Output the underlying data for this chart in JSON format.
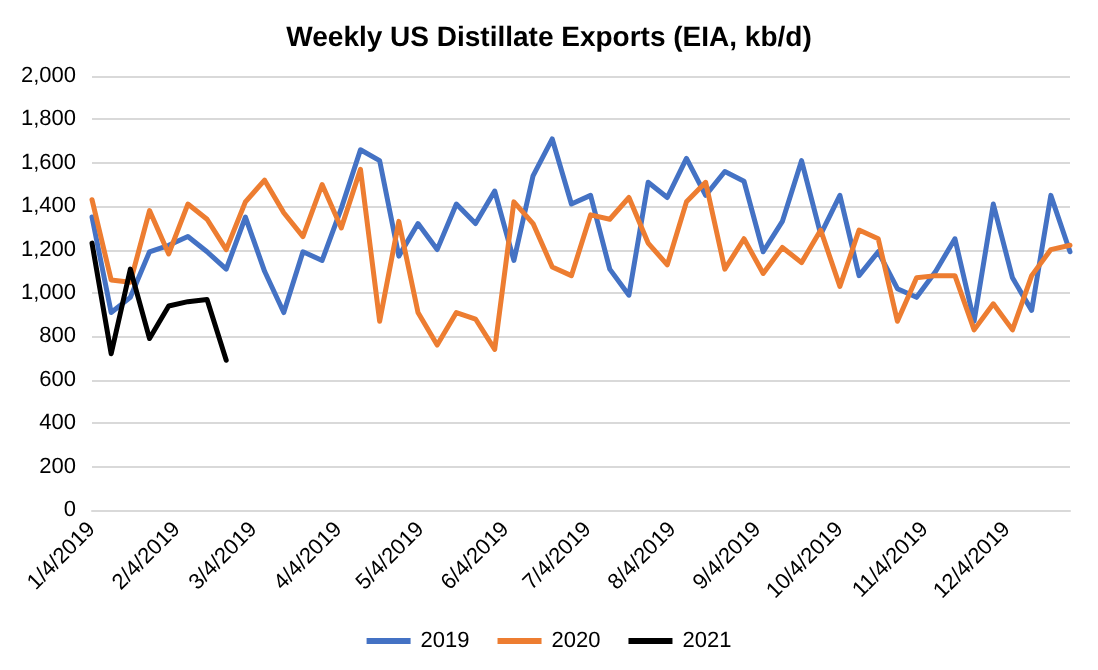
{
  "chart_data": {
    "type": "line",
    "title": "Weekly US Distillate Exports (EIA, kb/d)",
    "x": [
      "2019-01-04",
      "2019-01-11",
      "2019-01-18",
      "2019-01-25",
      "2019-02-01",
      "2019-02-08",
      "2019-02-15",
      "2019-02-22",
      "2019-03-01",
      "2019-03-08",
      "2019-03-15",
      "2019-03-22",
      "2019-03-29",
      "2019-04-05",
      "2019-04-12",
      "2019-04-19",
      "2019-04-26",
      "2019-05-03",
      "2019-05-10",
      "2019-05-17",
      "2019-05-24",
      "2019-05-31",
      "2019-06-07",
      "2019-06-14",
      "2019-06-21",
      "2019-06-28",
      "2019-07-05",
      "2019-07-12",
      "2019-07-19",
      "2019-07-26",
      "2019-08-02",
      "2019-08-09",
      "2019-08-16",
      "2019-08-23",
      "2019-08-30",
      "2019-09-06",
      "2019-09-13",
      "2019-09-20",
      "2019-09-27",
      "2019-10-04",
      "2019-10-11",
      "2019-10-18",
      "2019-10-25",
      "2019-11-01",
      "2019-11-08",
      "2019-11-15",
      "2019-11-22",
      "2019-11-29",
      "2019-12-06",
      "2019-12-13",
      "2019-12-20",
      "2019-12-27"
    ],
    "series": [
      {
        "name": "2019",
        "color": "#4472c4",
        "values": [
          1350,
          910,
          980,
          1190,
          1220,
          1260,
          1190,
          1110,
          1350,
          1100,
          910,
          1190,
          1150,
          1390,
          1660,
          1610,
          1170,
          1320,
          1200,
          1410,
          1320,
          1470,
          1150,
          1540,
          1710,
          1410,
          1450,
          1110,
          990,
          1510,
          1440,
          1620,
          1450,
          1560,
          1515,
          1190,
          1330,
          1610,
          1270,
          1450,
          1080,
          1190,
          1020,
          980,
          1100,
          1250,
          870,
          1410,
          1070,
          920,
          1450,
          1190
        ]
      },
      {
        "name": "2020",
        "color": "#ed7d31",
        "values": [
          1430,
          1060,
          1050,
          1380,
          1180,
          1410,
          1340,
          1200,
          1420,
          1520,
          1370,
          1260,
          1500,
          1300,
          1570,
          870,
          1330,
          910,
          760,
          910,
          880,
          740,
          1420,
          1320,
          1120,
          1080,
          1360,
          1340,
          1440,
          1230,
          1130,
          1420,
          1510,
          1110,
          1250,
          1090,
          1210,
          1140,
          1290,
          1030,
          1290,
          1250,
          870,
          1070,
          1080,
          1080,
          830,
          950,
          830,
          1080,
          1200,
          1220
        ]
      },
      {
        "name": "2021",
        "color": "#000000",
        "x": [
          "2019-01-04",
          "2019-01-11",
          "2019-01-18",
          "2019-01-25",
          "2019-02-01",
          "2019-02-08",
          "2019-02-15",
          "2019-02-22"
        ],
        "values": [
          1230,
          720,
          1110,
          790,
          940,
          960,
          970,
          690
        ]
      }
    ],
    "xlim": [
      "2019-01-04",
      "2019-12-27"
    ],
    "xticks": [
      {
        "value": "2019-01-04",
        "label": "1/4/2019"
      },
      {
        "value": "2019-02-04",
        "label": "2/4/2019"
      },
      {
        "value": "2019-03-04",
        "label": "3/4/2019"
      },
      {
        "value": "2019-04-04",
        "label": "4/4/2019"
      },
      {
        "value": "2019-05-04",
        "label": "5/4/2019"
      },
      {
        "value": "2019-06-04",
        "label": "6/4/2019"
      },
      {
        "value": "2019-07-04",
        "label": "7/4/2019"
      },
      {
        "value": "2019-08-04",
        "label": "8/4/2019"
      },
      {
        "value": "2019-09-04",
        "label": "9/4/2019"
      },
      {
        "value": "2019-10-04",
        "label": "10/4/2019"
      },
      {
        "value": "2019-11-04",
        "label": "11/4/2019"
      },
      {
        "value": "2019-12-04",
        "label": "12/4/2019"
      }
    ],
    "ylim": [
      0,
      2000
    ],
    "yticks": [
      {
        "value": 0,
        "label": "0"
      },
      {
        "value": 200,
        "label": "200"
      },
      {
        "value": 400,
        "label": "400"
      },
      {
        "value": 600,
        "label": "600"
      },
      {
        "value": 800,
        "label": "800"
      },
      {
        "value": 1000,
        "label": "1,000"
      },
      {
        "value": 1200,
        "label": "1,200"
      },
      {
        "value": 1400,
        "label": "1,400"
      },
      {
        "value": 1600,
        "label": "1,600"
      },
      {
        "value": 1800,
        "label": "1,800"
      },
      {
        "value": 2000,
        "label": "2,000"
      }
    ],
    "grid": "y",
    "legend": "bottom",
    "marker": "none",
    "line_style": "solid"
  }
}
